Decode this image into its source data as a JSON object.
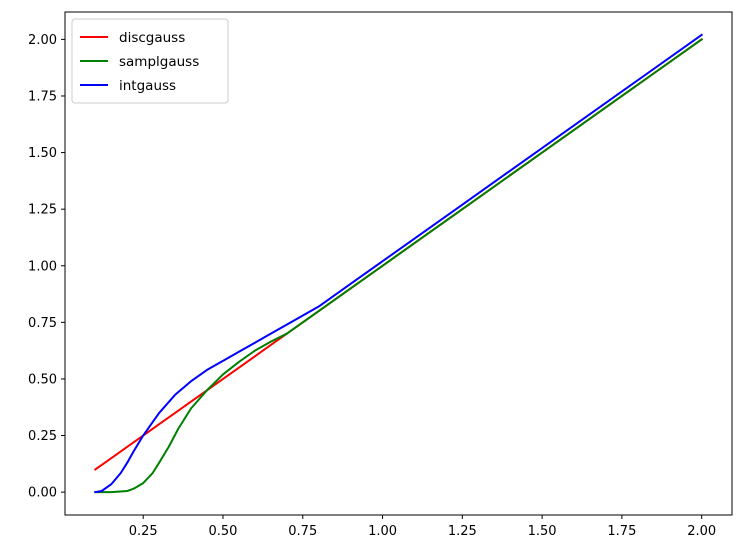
{
  "chart_data": {
    "type": "line",
    "title": "",
    "xlabel": "",
    "ylabel": "",
    "xlim": [
      0.005,
      2.095
    ],
    "ylim": [
      -0.101,
      2.121
    ],
    "xticks": [
      0.25,
      0.5,
      0.75,
      1.0,
      1.25,
      1.5,
      1.75,
      2.0
    ],
    "xtick_labels": [
      "0.25",
      "0.50",
      "0.75",
      "1.00",
      "1.25",
      "1.50",
      "1.75",
      "2.00"
    ],
    "yticks": [
      0.0,
      0.25,
      0.5,
      0.75,
      1.0,
      1.25,
      1.5,
      1.75,
      2.0
    ],
    "ytick_labels": [
      "0.00",
      "0.25",
      "0.50",
      "0.75",
      "1.00",
      "1.25",
      "1.50",
      "1.75",
      "2.00"
    ],
    "grid": false,
    "legend": "top-left",
    "series": [
      {
        "name": "discgauss",
        "color": "#ff0000",
        "x": [
          0.1,
          0.15,
          0.2,
          0.25,
          0.3,
          0.35,
          0.4,
          0.45,
          0.5,
          0.55,
          0.6,
          0.65,
          0.7,
          0.8,
          0.9,
          1.0,
          1.25,
          1.5,
          1.75,
          2.0
        ],
        "y": [
          0.1,
          0.15,
          0.2,
          0.25,
          0.3,
          0.35,
          0.4,
          0.45,
          0.5,
          0.55,
          0.6,
          0.65,
          0.7,
          0.8,
          0.9,
          1.0,
          1.25,
          1.5,
          1.75,
          2.0
        ]
      },
      {
        "name": "samplgauss",
        "color": "#008000",
        "x": [
          0.1,
          0.15,
          0.2,
          0.22,
          0.25,
          0.28,
          0.3,
          0.33,
          0.36,
          0.4,
          0.45,
          0.5,
          0.55,
          0.6,
          0.65,
          0.7,
          0.8,
          0.9,
          1.0,
          1.25,
          1.5,
          1.75,
          2.0
        ],
        "y": [
          0.0,
          0.0,
          0.005,
          0.015,
          0.04,
          0.085,
          0.13,
          0.2,
          0.28,
          0.37,
          0.45,
          0.52,
          0.575,
          0.625,
          0.665,
          0.7,
          0.8,
          0.9,
          1.0,
          1.25,
          1.5,
          1.75,
          2.0
        ]
      },
      {
        "name": "intgauss",
        "color": "#0000ff",
        "x": [
          0.1,
          0.12,
          0.15,
          0.18,
          0.2,
          0.22,
          0.25,
          0.28,
          0.3,
          0.35,
          0.4,
          0.45,
          0.5,
          0.55,
          0.6,
          0.65,
          0.7,
          0.8,
          0.9,
          1.0,
          1.25,
          1.5,
          1.75,
          2.0
        ],
        "y": [
          0.0,
          0.005,
          0.035,
          0.085,
          0.13,
          0.18,
          0.25,
          0.31,
          0.35,
          0.43,
          0.49,
          0.54,
          0.58,
          0.62,
          0.66,
          0.7,
          0.74,
          0.82,
          0.92,
          1.02,
          1.27,
          1.52,
          1.77,
          2.02
        ]
      }
    ]
  }
}
